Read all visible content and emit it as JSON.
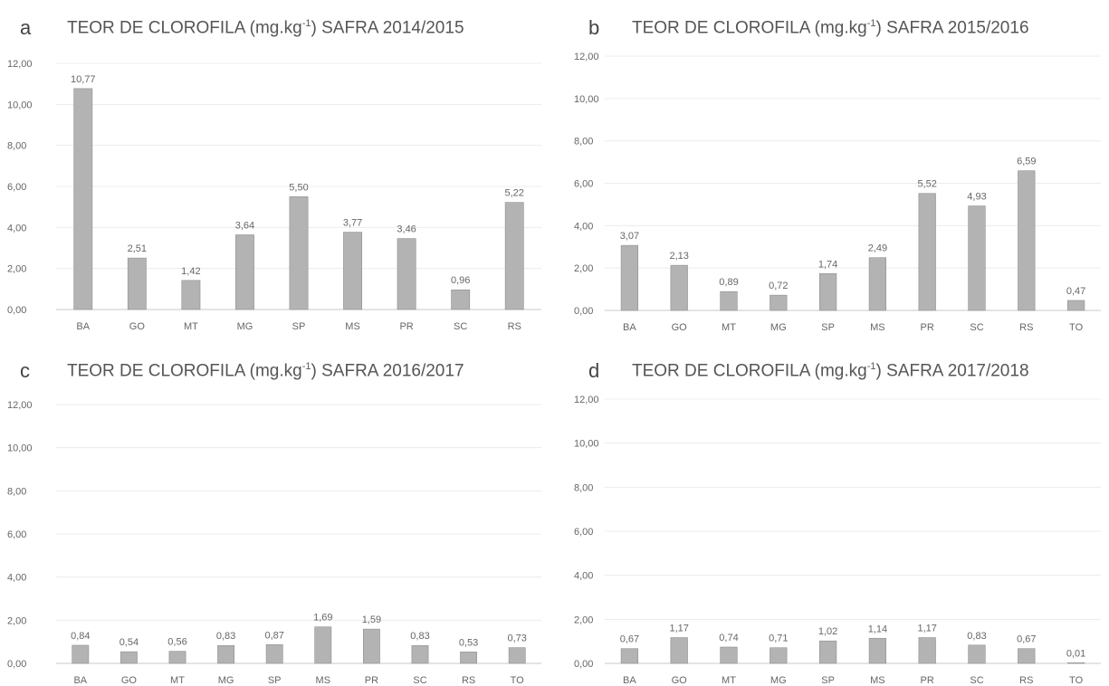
{
  "chart_data": [
    {
      "panel": "a",
      "type": "bar",
      "title": "TEOR DE CLOROFILA (mg.kg-1) SAFRA 2014/2015",
      "title_prefix": "TEOR DE CLOROFILA (mg.kg",
      "title_sup": "-1",
      "title_suffix": ") SAFRA 2014/2015",
      "categories": [
        "BA",
        "GO",
        "MT",
        "MG",
        "SP",
        "MS",
        "PR",
        "SC",
        "RS"
      ],
      "values": [
        10.77,
        2.51,
        1.42,
        3.64,
        5.5,
        3.77,
        3.46,
        0.96,
        5.22
      ],
      "value_labels": [
        "10,77",
        "2,51",
        "1,42",
        "3,64",
        "5,50",
        "3,77",
        "3,46",
        "0,96",
        "5,22"
      ],
      "ylim": [
        0,
        12
      ],
      "yticks": [
        "0,00",
        "2,00",
        "4,00",
        "6,00",
        "8,00",
        "10,00",
        "12,00"
      ],
      "grid": true
    },
    {
      "panel": "b",
      "type": "bar",
      "title": "TEOR DE CLOROFILA (mg.kg-1) SAFRA 2015/2016",
      "title_prefix": "TEOR DE CLOROFILA (mg.kg",
      "title_sup": "-1",
      "title_suffix": ") SAFRA 2015/2016",
      "categories": [
        "BA",
        "GO",
        "MT",
        "MG",
        "SP",
        "MS",
        "PR",
        "SC",
        "RS",
        "TO"
      ],
      "values": [
        3.07,
        2.13,
        0.89,
        0.72,
        1.74,
        2.49,
        5.52,
        4.93,
        6.59,
        0.47
      ],
      "value_labels": [
        "3,07",
        "2,13",
        "0,89",
        "0,72",
        "1,74",
        "2,49",
        "5,52",
        "4,93",
        "6,59",
        "0,47"
      ],
      "ylim": [
        0,
        12
      ],
      "yticks": [
        "0,00",
        "2,00",
        "4,00",
        "6,00",
        "8,00",
        "10,00",
        "12,00"
      ],
      "grid": true
    },
    {
      "panel": "c",
      "type": "bar",
      "title": "TEOR DE CLOROFILA (mg.kg-1) SAFRA 2016/2017",
      "title_prefix": "TEOR DE CLOROFILA (mg.kg",
      "title_sup": "-1",
      "title_suffix": ") SAFRA 2016/2017",
      "categories": [
        "BA",
        "GO",
        "MT",
        "MG",
        "SP",
        "MS",
        "PR",
        "SC",
        "RS",
        "TO"
      ],
      "values": [
        0.84,
        0.54,
        0.56,
        0.83,
        0.87,
        1.69,
        1.59,
        0.83,
        0.53,
        0.73
      ],
      "value_labels": [
        "0,84",
        "0,54",
        "0,56",
        "0,83",
        "0,87",
        "1,69",
        "1,59",
        "0,83",
        "0,53",
        "0,73"
      ],
      "ylim": [
        0,
        12
      ],
      "yticks": [
        "0,00",
        "2,00",
        "4,00",
        "6,00",
        "8,00",
        "10,00",
        "12,00"
      ],
      "grid": true
    },
    {
      "panel": "d",
      "type": "bar",
      "title": "TEOR DE CLOROFILA (mg.kg-1) SAFRA 2017/2018",
      "title_prefix": "TEOR DE CLOROFILA (mg.kg",
      "title_sup": "-1",
      "title_suffix": ") SAFRA 2017/2018",
      "categories": [
        "BA",
        "GO",
        "MT",
        "MG",
        "SP",
        "MS",
        "PR",
        "SC",
        "RS",
        "TO"
      ],
      "values": [
        0.67,
        1.17,
        0.74,
        0.71,
        1.02,
        1.14,
        1.17,
        0.83,
        0.67,
        0.01
      ],
      "value_labels": [
        "0,67",
        "1,17",
        "0,74",
        "0,71",
        "1,02",
        "1,14",
        "1,17",
        "0,83",
        "0,67",
        "0,01"
      ],
      "ylim": [
        0,
        12
      ],
      "yticks": [
        "0,00",
        "2,00",
        "4,00",
        "6,00",
        "8,00",
        "10,00",
        "12,00"
      ],
      "grid": true
    }
  ],
  "colors": {
    "bar": "#b3b3b3",
    "bar_stroke": "#8f8f8f",
    "grid": "#ececec",
    "axis": "#c8c8c8",
    "text": "#666666",
    "title": "#555555"
  }
}
